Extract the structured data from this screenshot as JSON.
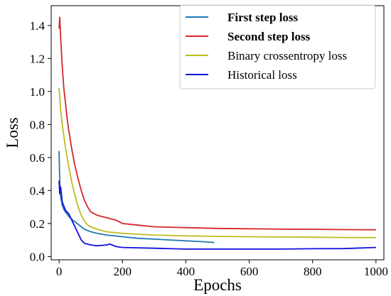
{
  "chart_data": {
    "type": "line",
    "title": "",
    "xlabel": "Epochs",
    "ylabel": "Loss",
    "xlim": [
      -25,
      1025
    ],
    "ylim": [
      -0.02,
      1.52
    ],
    "x_ticks": [
      0,
      200,
      400,
      600,
      800,
      1000
    ],
    "x_tick_labels": [
      "0",
      "200",
      "400",
      "600",
      "800",
      "1000"
    ],
    "y_ticks": [
      0.0,
      0.2,
      0.4,
      0.6,
      0.8,
      1.0,
      1.2,
      1.4
    ],
    "y_tick_labels": [
      "0.0",
      "0.2",
      "0.4",
      "0.6",
      "0.8",
      "1.0",
      "1.2",
      "1.4"
    ],
    "grid": false,
    "legend_position": "top-right",
    "series": [
      {
        "name": "First step loss",
        "bold": true,
        "color": "#1f77b4",
        "x": [
          0,
          2,
          5,
          10,
          15,
          20,
          30,
          40,
          50,
          60,
          70,
          80,
          100,
          120,
          150,
          200,
          250,
          300,
          350,
          400,
          450,
          490
        ],
        "y": [
          0.64,
          0.46,
          0.36,
          0.31,
          0.285,
          0.27,
          0.245,
          0.225,
          0.21,
          0.195,
          0.18,
          0.165,
          0.15,
          0.14,
          0.13,
          0.12,
          0.11,
          0.105,
          0.1,
          0.095,
          0.09,
          0.085
        ]
      },
      {
        "name": "Second step loss",
        "bold": true,
        "color": "#d62728",
        "x": [
          0,
          2,
          5,
          10,
          15,
          20,
          25,
          30,
          40,
          50,
          60,
          70,
          80,
          90,
          100,
          120,
          150,
          180,
          200,
          250,
          300,
          400,
          500,
          600,
          700,
          800,
          900,
          1000
        ],
        "y": [
          1.38,
          1.45,
          1.32,
          1.15,
          1.02,
          0.93,
          0.84,
          0.77,
          0.65,
          0.55,
          0.47,
          0.4,
          0.34,
          0.3,
          0.27,
          0.25,
          0.235,
          0.22,
          0.2,
          0.19,
          0.18,
          0.175,
          0.17,
          0.168,
          0.166,
          0.165,
          0.163,
          0.162
        ]
      },
      {
        "name": "Binary crossentropy loss",
        "bold": false,
        "color": "#bcbd22",
        "x": [
          0,
          5,
          10,
          20,
          30,
          40,
          50,
          60,
          70,
          80,
          90,
          100,
          120,
          150,
          200,
          300,
          400,
          500,
          600,
          700,
          800,
          900,
          1000
        ],
        "y": [
          1.02,
          0.88,
          0.8,
          0.66,
          0.55,
          0.45,
          0.37,
          0.3,
          0.25,
          0.215,
          0.19,
          0.18,
          0.165,
          0.15,
          0.14,
          0.13,
          0.125,
          0.122,
          0.12,
          0.118,
          0.117,
          0.115,
          0.114
        ]
      },
      {
        "name": "Historical loss",
        "bold": false,
        "color": "#1010e0",
        "x": [
          0,
          2,
          5,
          10,
          20,
          30,
          40,
          50,
          60,
          70,
          80,
          100,
          120,
          150,
          160,
          180,
          200,
          300,
          400,
          500,
          600,
          700,
          800,
          900,
          1000
        ],
        "y": [
          0.46,
          0.38,
          0.42,
          0.33,
          0.28,
          0.26,
          0.22,
          0.18,
          0.14,
          0.1,
          0.08,
          0.07,
          0.065,
          0.07,
          0.075,
          0.06,
          0.055,
          0.05,
          0.045,
          0.045,
          0.045,
          0.045,
          0.047,
          0.048,
          0.055
        ]
      }
    ]
  }
}
